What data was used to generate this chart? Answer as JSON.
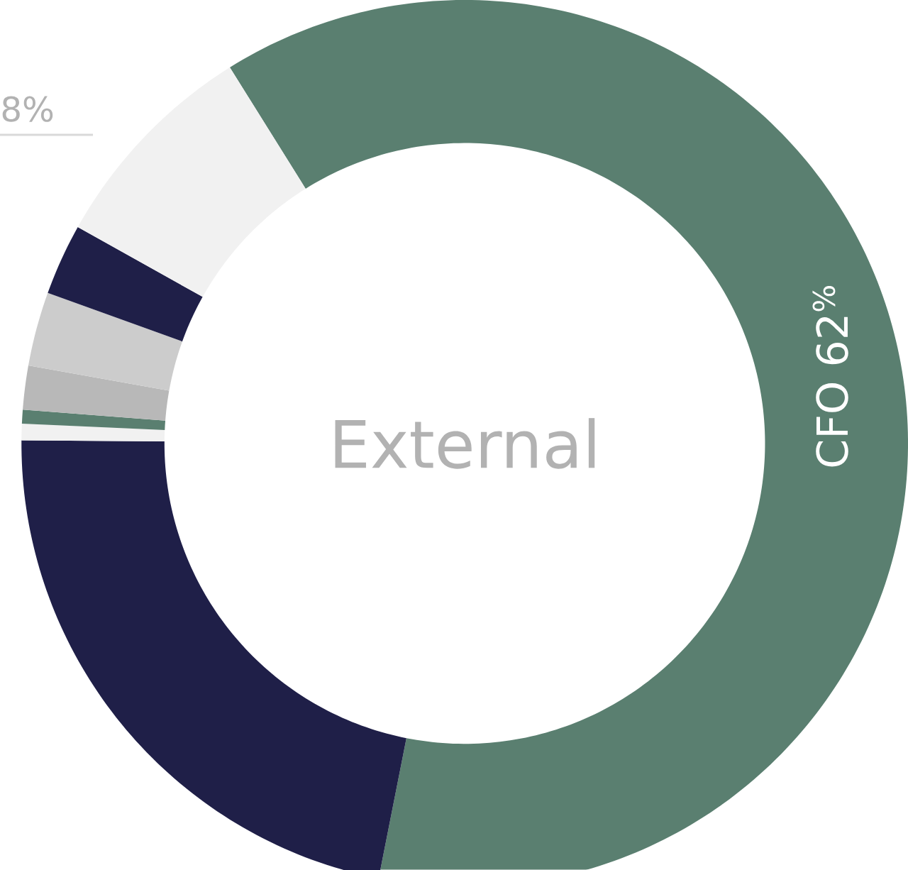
{
  "chart_data": {
    "type": "donut",
    "title": "External",
    "categories": [
      "CFO",
      null,
      null,
      null,
      null,
      null,
      null,
      null
    ],
    "values": [
      62,
      22,
      0.6,
      0.5,
      1.6,
      2.7,
      2.6,
      8
    ],
    "colors": [
      "#5a7f70",
      "#1f1f48",
      "#f1f1f1",
      "#5a7f70",
      "#b8b8b8",
      "#cccccc",
      "#1f1f48",
      "#f1f1f1"
    ],
    "value_labels": [
      "62$^{%}$",
      null,
      null,
      null,
      null,
      null,
      null,
      "8%"
    ]
  }
}
